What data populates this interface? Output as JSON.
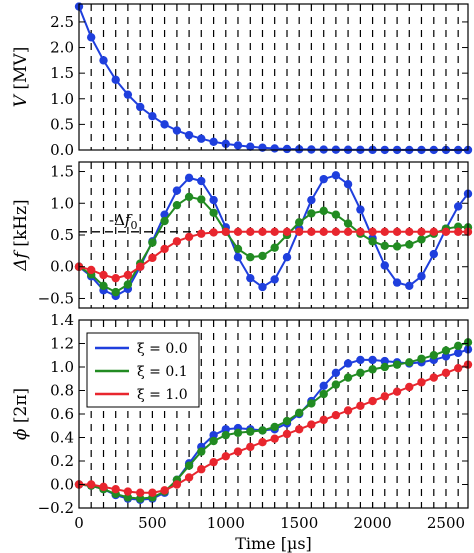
{
  "chart_data": [
    {
      "type": "line",
      "ylabel_var": "V",
      "ylabel_unit": "[MV]",
      "ylim": [
        0,
        2.85
      ],
      "yticks": [
        0.0,
        0.5,
        1.0,
        1.5,
        2.0,
        2.5
      ],
      "ytick_labels": [
        "0.0",
        "0.5",
        "1.0",
        "1.5",
        "2.0",
        "2.5"
      ],
      "xlim": [
        0,
        2650
      ],
      "series": [
        {
          "color": "#1f3fdd",
          "x": [
            0,
            83,
            167,
            250,
            333,
            417,
            500,
            583,
            667,
            750,
            833,
            917,
            1000,
            1083,
            1167,
            1250,
            1333,
            1417,
            1500,
            1583,
            1667,
            1750,
            1833,
            1917,
            2000,
            2083,
            2167,
            2250,
            2333,
            2417,
            2500,
            2583,
            2650
          ],
          "y": [
            2.8,
            2.2,
            1.75,
            1.37,
            1.08,
            0.84,
            0.66,
            0.5,
            0.38,
            0.29,
            0.22,
            0.16,
            0.12,
            0.09,
            0.065,
            0.045,
            0.03,
            0.02,
            0.015,
            0.01,
            0.008,
            0.006,
            0.005,
            0.004,
            0.003,
            0.002,
            0.002,
            0.001,
            0.001,
            0.001,
            0.001,
            0.0,
            0.0
          ]
        }
      ]
    },
    {
      "type": "line",
      "ylabel_var": "Δf",
      "ylabel_unit": "[kHz]",
      "ylim": [
        -0.65,
        1.65
      ],
      "yticks": [
        -0.5,
        0.0,
        0.5,
        1.0,
        1.5
      ],
      "ytick_labels": [
        "−0.5",
        "0.0",
        "0.5",
        "1.0",
        "1.5"
      ],
      "xlim": [
        0,
        2650
      ],
      "reference_line": {
        "y": 0.55,
        "label_prefix": "-Δ",
        "label_var": "f",
        "label_sub": "0"
      },
      "series": [
        {
          "name": "ξ = 0.0",
          "color": "#1f3fdd",
          "x": [
            0,
            83,
            167,
            250,
            333,
            417,
            500,
            583,
            667,
            750,
            833,
            917,
            1000,
            1083,
            1167,
            1250,
            1333,
            1417,
            1500,
            1583,
            1667,
            1750,
            1833,
            1917,
            2000,
            2083,
            2167,
            2250,
            2333,
            2417,
            2500,
            2583,
            2650
          ],
          "y": [
            0.0,
            -0.15,
            -0.37,
            -0.46,
            -0.35,
            0.0,
            0.4,
            0.82,
            1.2,
            1.4,
            1.35,
            1.05,
            0.62,
            0.15,
            -0.18,
            -0.32,
            -0.2,
            0.15,
            0.6,
            1.05,
            1.38,
            1.44,
            1.3,
            0.9,
            0.45,
            0.02,
            -0.25,
            -0.3,
            -0.15,
            0.2,
            0.6,
            0.95,
            1.15
          ]
        },
        {
          "name": "ξ = 0.1",
          "color": "#228b22",
          "x": [
            0,
            83,
            167,
            250,
            333,
            417,
            500,
            583,
            667,
            750,
            833,
            917,
            1000,
            1083,
            1167,
            1250,
            1333,
            1417,
            1500,
            1583,
            1667,
            1750,
            1833,
            1917,
            2000,
            2083,
            2167,
            2250,
            2333,
            2417,
            2500,
            2583,
            2650
          ],
          "y": [
            0.0,
            -0.12,
            -0.3,
            -0.4,
            -0.28,
            0.05,
            0.38,
            0.72,
            0.97,
            1.1,
            1.06,
            0.85,
            0.55,
            0.28,
            0.15,
            0.17,
            0.3,
            0.5,
            0.7,
            0.84,
            0.88,
            0.82,
            0.68,
            0.52,
            0.4,
            0.33,
            0.32,
            0.35,
            0.43,
            0.52,
            0.6,
            0.63,
            0.62
          ]
        },
        {
          "name": "ξ = 1.0",
          "color": "#e8262e",
          "x": [
            0,
            83,
            167,
            250,
            333,
            417,
            500,
            583,
            667,
            750,
            833,
            917,
            1000,
            1083,
            1167,
            1250,
            1333,
            1417,
            1500,
            1583,
            1667,
            1750,
            1833,
            1917,
            2000,
            2083,
            2167,
            2250,
            2333,
            2417,
            2500,
            2583,
            2650
          ],
          "y": [
            0.0,
            -0.05,
            -0.13,
            -0.18,
            -0.13,
            0.0,
            0.14,
            0.28,
            0.4,
            0.47,
            0.52,
            0.54,
            0.55,
            0.55,
            0.55,
            0.55,
            0.55,
            0.55,
            0.55,
            0.55,
            0.55,
            0.55,
            0.55,
            0.55,
            0.55,
            0.55,
            0.55,
            0.55,
            0.55,
            0.55,
            0.55,
            0.55,
            0.55
          ]
        }
      ]
    },
    {
      "type": "line",
      "ylabel_var": "ϕ",
      "ylabel_unit": "[2π]",
      "ylim": [
        -0.2,
        1.4
      ],
      "yticks": [
        -0.2,
        0.0,
        0.2,
        0.4,
        0.6,
        0.8,
        1.0,
        1.2,
        1.4
      ],
      "ytick_labels": [
        "−0.2",
        "0.0",
        "0.2",
        "0.4",
        "0.6",
        "0.8",
        "1.0",
        "1.2",
        "1.4"
      ],
      "xlim": [
        0,
        2650
      ],
      "xticks": [
        0,
        500,
        1000,
        1500,
        2000,
        2500
      ],
      "xtick_labels": [
        "0",
        "500",
        "1000",
        "1500",
        "2000",
        "2500"
      ],
      "xlabel": "Time [µs]",
      "legend": "upper-left",
      "series": [
        {
          "name": "ξ = 0.0",
          "color": "#1f3fdd",
          "x": [
            0,
            83,
            167,
            250,
            333,
            417,
            500,
            583,
            667,
            750,
            833,
            917,
            1000,
            1083,
            1167,
            1250,
            1333,
            1417,
            1500,
            1583,
            1667,
            1750,
            1833,
            1917,
            2000,
            2083,
            2167,
            2250,
            2333,
            2417,
            2500,
            2583,
            2650
          ],
          "y": [
            0.0,
            -0.01,
            -0.04,
            -0.09,
            -0.12,
            -0.13,
            -0.12,
            -0.07,
            0.04,
            0.18,
            0.32,
            0.42,
            0.47,
            0.48,
            0.47,
            0.46,
            0.47,
            0.52,
            0.6,
            0.71,
            0.84,
            0.95,
            1.03,
            1.06,
            1.06,
            1.05,
            1.04,
            1.03,
            1.04,
            1.06,
            1.09,
            1.12,
            1.15
          ]
        },
        {
          "name": "ξ = 0.1",
          "color": "#228b22",
          "x": [
            0,
            83,
            167,
            250,
            333,
            417,
            500,
            583,
            667,
            750,
            833,
            917,
            1000,
            1083,
            1167,
            1250,
            1333,
            1417,
            1500,
            1583,
            1667,
            1750,
            1833,
            1917,
            2000,
            2083,
            2167,
            2250,
            2333,
            2417,
            2500,
            2583,
            2650
          ],
          "y": [
            0.0,
            -0.01,
            -0.04,
            -0.08,
            -0.11,
            -0.12,
            -0.11,
            -0.06,
            0.04,
            0.16,
            0.28,
            0.37,
            0.42,
            0.44,
            0.45,
            0.46,
            0.49,
            0.54,
            0.61,
            0.69,
            0.77,
            0.85,
            0.91,
            0.95,
            0.98,
            1.0,
            1.02,
            1.04,
            1.07,
            1.1,
            1.14,
            1.18,
            1.21
          ]
        },
        {
          "name": "ξ = 1.0",
          "color": "#e8262e",
          "x": [
            0,
            83,
            167,
            250,
            333,
            417,
            500,
            583,
            667,
            750,
            833,
            917,
            1000,
            1083,
            1167,
            1250,
            1333,
            1417,
            1500,
            1583,
            1667,
            1750,
            1833,
            1917,
            2000,
            2083,
            2167,
            2250,
            2333,
            2417,
            2500,
            2583,
            2650
          ],
          "y": [
            0.0,
            0.0,
            -0.02,
            -0.04,
            -0.06,
            -0.07,
            -0.07,
            -0.05,
            0.0,
            0.06,
            0.13,
            0.19,
            0.24,
            0.28,
            0.32,
            0.36,
            0.39,
            0.43,
            0.47,
            0.51,
            0.55,
            0.59,
            0.63,
            0.67,
            0.71,
            0.75,
            0.79,
            0.83,
            0.87,
            0.91,
            0.95,
            0.99,
            1.02
          ]
        }
      ]
    }
  ],
  "legend_entries": [
    {
      "label": "ξ = 0.0",
      "color": "#1f3fdd"
    },
    {
      "label": "ξ = 0.1",
      "color": "#228b22"
    },
    {
      "label": "ξ = 1.0",
      "color": "#e8262e"
    }
  ]
}
